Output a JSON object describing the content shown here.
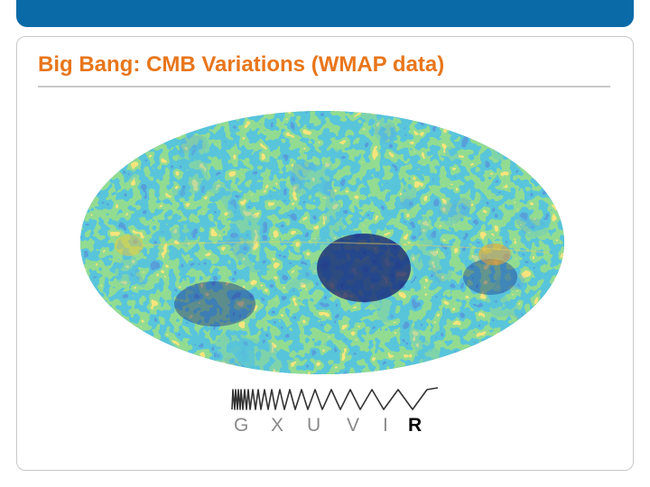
{
  "slide": {
    "title": "Big Bang: CMB Variations (WMAP data)",
    "band_labels": [
      "G",
      "X",
      "U",
      "V",
      "I",
      "R"
    ],
    "active_band": "R"
  },
  "colors": {
    "header_band": "#0a6aa8",
    "title": "#e8761b",
    "map_cold": "#1c2a86",
    "map_mid": "#1a8fb4",
    "map_warm": "#49b84a",
    "map_hot": "#f2c733"
  }
}
